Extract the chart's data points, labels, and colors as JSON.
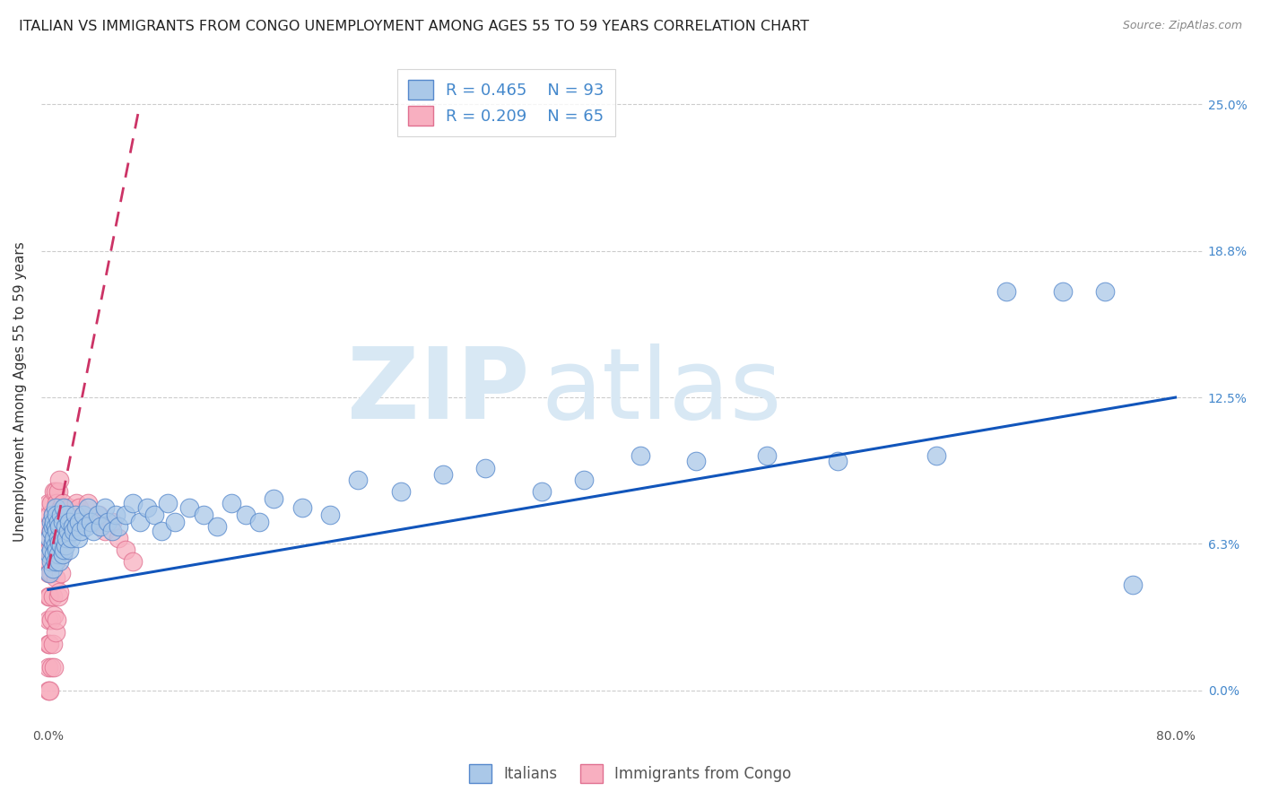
{
  "title": "ITALIAN VS IMMIGRANTS FROM CONGO UNEMPLOYMENT AMONG AGES 55 TO 59 YEARS CORRELATION CHART",
  "source": "Source: ZipAtlas.com",
  "ylabel": "Unemployment Among Ages 55 to 59 years",
  "xlim": [
    -0.005,
    0.82
  ],
  "ylim": [
    -0.015,
    0.27
  ],
  "ytick_positions": [
    0.0,
    0.0625,
    0.125,
    0.1875,
    0.25
  ],
  "ytick_labels": [
    "0.0%",
    "6.3%",
    "12.5%",
    "18.8%",
    "25.0%"
  ],
  "xtick_positions": [
    0.0,
    0.1,
    0.2,
    0.3,
    0.4,
    0.5,
    0.6,
    0.7,
    0.8
  ],
  "xtick_labels": [
    "0.0%",
    "",
    "",
    "",
    "",
    "",
    "",
    "",
    "80.0%"
  ],
  "legend_r1": "R = 0.465",
  "legend_n1": "N = 93",
  "legend_r2": "R = 0.209",
  "legend_n2": "N = 65",
  "italian_color": "#aac8e8",
  "congo_color": "#f8afc0",
  "italian_edge": "#5588cc",
  "congo_edge": "#e07090",
  "regression_blue": "#1155bb",
  "regression_pink": "#cc3366",
  "watermark_color": "#d8e8f4",
  "background": "#ffffff",
  "title_fontsize": 11.5,
  "axis_label_fontsize": 11,
  "tick_fontsize": 10,
  "legend_fontsize": 13,
  "italians_x": [
    0.001,
    0.001,
    0.001,
    0.002,
    0.002,
    0.002,
    0.002,
    0.003,
    0.003,
    0.003,
    0.003,
    0.004,
    0.004,
    0.004,
    0.005,
    0.005,
    0.005,
    0.005,
    0.006,
    0.006,
    0.006,
    0.007,
    0.007,
    0.007,
    0.008,
    0.008,
    0.008,
    0.009,
    0.009,
    0.01,
    0.01,
    0.01,
    0.011,
    0.011,
    0.012,
    0.012,
    0.013,
    0.013,
    0.014,
    0.015,
    0.015,
    0.016,
    0.017,
    0.018,
    0.019,
    0.02,
    0.021,
    0.022,
    0.023,
    0.025,
    0.027,
    0.028,
    0.03,
    0.032,
    0.035,
    0.037,
    0.04,
    0.042,
    0.045,
    0.048,
    0.05,
    0.055,
    0.06,
    0.065,
    0.07,
    0.075,
    0.08,
    0.085,
    0.09,
    0.1,
    0.11,
    0.12,
    0.13,
    0.14,
    0.15,
    0.16,
    0.18,
    0.2,
    0.22,
    0.25,
    0.28,
    0.31,
    0.35,
    0.38,
    0.42,
    0.46,
    0.51,
    0.56,
    0.63,
    0.68,
    0.72,
    0.75,
    0.77
  ],
  "italians_y": [
    0.05,
    0.058,
    0.065,
    0.055,
    0.06,
    0.068,
    0.072,
    0.052,
    0.063,
    0.07,
    0.075,
    0.058,
    0.065,
    0.072,
    0.055,
    0.062,
    0.07,
    0.078,
    0.06,
    0.068,
    0.075,
    0.058,
    0.065,
    0.072,
    0.055,
    0.063,
    0.07,
    0.062,
    0.075,
    0.058,
    0.065,
    0.072,
    0.06,
    0.078,
    0.062,
    0.07,
    0.065,
    0.075,
    0.068,
    0.06,
    0.072,
    0.065,
    0.07,
    0.068,
    0.075,
    0.07,
    0.065,
    0.072,
    0.068,
    0.075,
    0.07,
    0.078,
    0.072,
    0.068,
    0.075,
    0.07,
    0.078,
    0.072,
    0.068,
    0.075,
    0.07,
    0.075,
    0.08,
    0.072,
    0.078,
    0.075,
    0.068,
    0.08,
    0.072,
    0.078,
    0.075,
    0.07,
    0.08,
    0.075,
    0.072,
    0.082,
    0.078,
    0.075,
    0.09,
    0.085,
    0.092,
    0.095,
    0.085,
    0.09,
    0.1,
    0.098,
    0.1,
    0.098,
    0.1,
    0.17,
    0.17,
    0.17,
    0.045
  ],
  "congo_x": [
    0.0,
    0.0,
    0.0,
    0.0,
    0.0,
    0.0,
    0.0,
    0.0,
    0.0,
    0.0,
    0.0,
    0.001,
    0.001,
    0.001,
    0.001,
    0.001,
    0.002,
    0.002,
    0.002,
    0.002,
    0.002,
    0.003,
    0.003,
    0.003,
    0.003,
    0.004,
    0.004,
    0.004,
    0.004,
    0.004,
    0.005,
    0.005,
    0.005,
    0.005,
    0.006,
    0.006,
    0.006,
    0.007,
    0.007,
    0.007,
    0.008,
    0.008,
    0.008,
    0.009,
    0.009,
    0.01,
    0.01,
    0.011,
    0.012,
    0.013,
    0.014,
    0.015,
    0.016,
    0.018,
    0.02,
    0.022,
    0.025,
    0.028,
    0.032,
    0.036,
    0.04,
    0.045,
    0.05,
    0.055,
    0.06
  ],
  "congo_y": [
    0.0,
    0.01,
    0.02,
    0.03,
    0.04,
    0.05,
    0.055,
    0.06,
    0.065,
    0.07,
    0.08,
    0.0,
    0.02,
    0.04,
    0.06,
    0.075,
    0.01,
    0.03,
    0.05,
    0.068,
    0.08,
    0.02,
    0.04,
    0.062,
    0.075,
    0.01,
    0.032,
    0.055,
    0.072,
    0.085,
    0.025,
    0.048,
    0.068,
    0.085,
    0.03,
    0.058,
    0.08,
    0.04,
    0.065,
    0.085,
    0.042,
    0.068,
    0.09,
    0.05,
    0.078,
    0.058,
    0.08,
    0.065,
    0.07,
    0.072,
    0.068,
    0.078,
    0.072,
    0.075,
    0.08,
    0.078,
    0.075,
    0.08,
    0.072,
    0.075,
    0.068,
    0.072,
    0.065,
    0.06,
    0.055
  ],
  "italian_scatter_size": 220,
  "congo_scatter_size": 220,
  "blue_line_start": 0.0,
  "blue_line_end": 0.8,
  "blue_line_y_start": 0.043,
  "blue_line_y_end": 0.125,
  "pink_line_x_start": 0.0,
  "pink_line_x_end": 0.065,
  "pink_line_y_start": 0.052,
  "pink_line_y_end": 0.25
}
